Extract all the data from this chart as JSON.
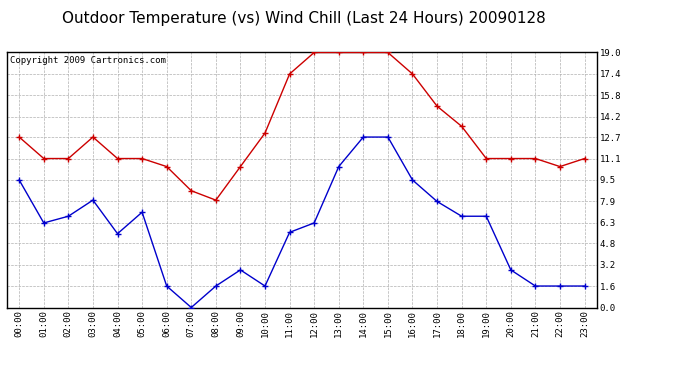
{
  "title": "Outdoor Temperature (vs) Wind Chill (Last 24 Hours) 20090128",
  "copyright": "Copyright 2009 Cartronics.com",
  "hours": [
    "00:00",
    "01:00",
    "02:00",
    "03:00",
    "04:00",
    "05:00",
    "06:00",
    "07:00",
    "08:00",
    "09:00",
    "10:00",
    "11:00",
    "12:00",
    "13:00",
    "14:00",
    "15:00",
    "16:00",
    "17:00",
    "18:00",
    "19:00",
    "20:00",
    "21:00",
    "22:00",
    "23:00"
  ],
  "red_data": [
    12.7,
    11.1,
    11.1,
    12.7,
    11.1,
    11.1,
    10.5,
    8.7,
    8.0,
    10.5,
    13.0,
    17.4,
    19.0,
    19.0,
    19.0,
    19.0,
    17.4,
    15.0,
    13.5,
    11.1,
    11.1,
    11.1,
    10.5,
    11.1
  ],
  "blue_data": [
    9.5,
    6.3,
    6.8,
    8.0,
    5.5,
    7.1,
    1.6,
    0.0,
    1.6,
    2.8,
    1.6,
    5.6,
    6.3,
    10.5,
    12.7,
    12.7,
    9.5,
    7.9,
    6.8,
    6.8,
    2.8,
    1.6,
    1.6,
    1.6
  ],
  "red_color": "#cc0000",
  "blue_color": "#0000cc",
  "bg_color": "#ffffff",
  "grid_color": "#b0b0b0",
  "ylim": [
    0.0,
    19.0
  ],
  "yticks": [
    0.0,
    1.6,
    3.2,
    4.8,
    6.3,
    7.9,
    9.5,
    11.1,
    12.7,
    14.2,
    15.8,
    17.4,
    19.0
  ],
  "title_fontsize": 11,
  "copyright_fontsize": 6.5
}
